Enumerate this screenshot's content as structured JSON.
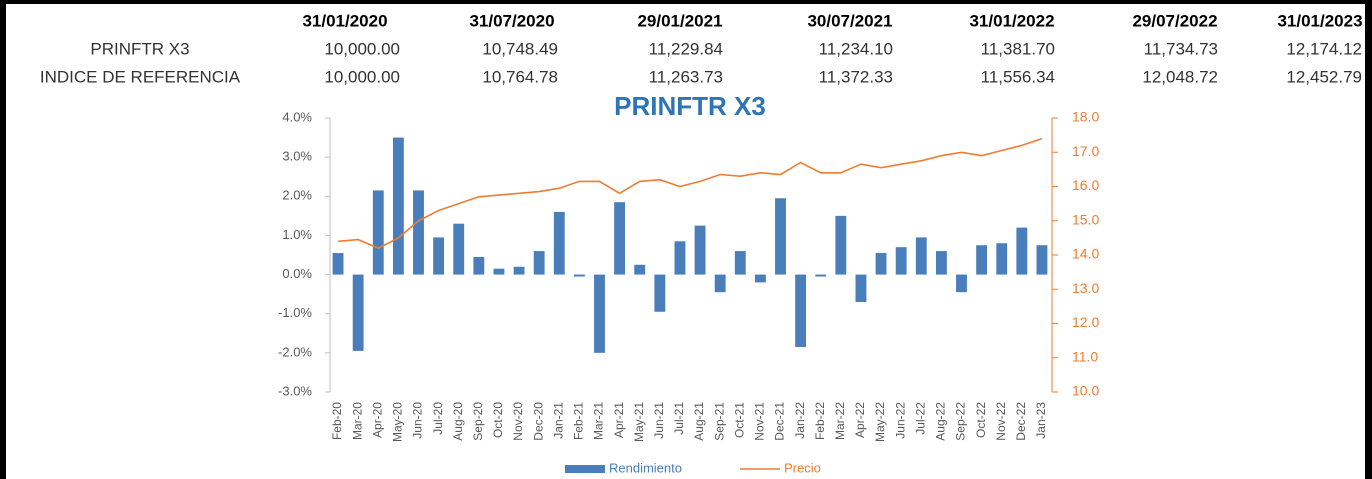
{
  "table": {
    "header": [
      "31/01/2020",
      "31/07/2020",
      "29/01/2021",
      "30/07/2021",
      "31/01/2022",
      "29/07/2022",
      "31/01/2023"
    ],
    "rows": [
      [
        "PRINFTR X3",
        "10,000.00",
        "10,748.49",
        "11,229.84",
        "11,234.10",
        "11,381.70",
        "11,734.73",
        "12,174.12"
      ],
      [
        "INDICE DE REFERENCIA",
        "10,000.00",
        "10,764.78",
        "11,263.73",
        "11,372.33",
        "11,556.34",
        "12,048.72",
        "12,452.79"
      ]
    ]
  },
  "chart_data": {
    "type": "bar",
    "title": "PRINFTR X3",
    "categories": [
      "Feb-20",
      "Mar-20",
      "Apr-20",
      "May-20",
      "Jun-20",
      "Jul-20",
      "Aug-20",
      "Sep-20",
      "Oct-20",
      "Nov-20",
      "Dec-20",
      "Jan-21",
      "Feb-21",
      "Mar-21",
      "Apr-21",
      "May-21",
      "Jun-21",
      "Jul-21",
      "Aug-21",
      "Sep-21",
      "Oct-21",
      "Nov-21",
      "Dec-21",
      "Jan-22",
      "Feb-22",
      "Mar-22",
      "Apr-22",
      "May-22",
      "Jun-22",
      "Jul-22",
      "Aug-22",
      "Sep-22",
      "Oct-22",
      "Nov-22",
      "Dec-22",
      "Jan-23"
    ],
    "series": [
      {
        "name": "Rendimiento",
        "type": "bar",
        "color": "#4a7ebb",
        "values": [
          0.55,
          -1.95,
          2.15,
          3.5,
          2.15,
          0.95,
          1.3,
          0.45,
          0.15,
          0.2,
          0.6,
          1.6,
          -0.05,
          -2.0,
          1.85,
          0.25,
          -0.95,
          0.85,
          1.25,
          -0.45,
          0.6,
          -0.2,
          1.95,
          -1.85,
          -0.05,
          1.5,
          -0.7,
          0.55,
          0.7,
          0.95,
          0.6,
          -0.45,
          0.75,
          0.8,
          1.2,
          0.75
        ]
      },
      {
        "name": "Precio",
        "type": "line",
        "color": "#ed7d31",
        "axis": "y2",
        "values": [
          14.4,
          14.45,
          14.2,
          14.5,
          15.0,
          15.3,
          15.5,
          15.7,
          15.75,
          15.8,
          15.85,
          15.95,
          16.15,
          16.15,
          15.8,
          16.15,
          16.2,
          16.0,
          16.15,
          16.35,
          16.3,
          16.4,
          16.35,
          16.7,
          16.4,
          16.4,
          16.65,
          16.55,
          16.65,
          16.75,
          16.9,
          17.0,
          16.9,
          17.05,
          17.2,
          17.4
        ]
      }
    ],
    "ylim": [
      -3,
      4
    ],
    "yticks": [
      {
        "value": -3,
        "label": "-3.0%"
      },
      {
        "value": -2,
        "label": "-2.0%"
      },
      {
        "value": -1,
        "label": "-1.0%"
      },
      {
        "value": 0,
        "label": "0.0%"
      },
      {
        "value": 1,
        "label": "1.0%"
      },
      {
        "value": 2,
        "label": "2.0%"
      },
      {
        "value": 3,
        "label": "3.0%"
      },
      {
        "value": 4,
        "label": "4.0%"
      }
    ],
    "y2lim": [
      10,
      18
    ],
    "y2ticks": [
      {
        "value": 10,
        "label": "10.0"
      },
      {
        "value": 11,
        "label": "11.0"
      },
      {
        "value": 12,
        "label": "12.0"
      },
      {
        "value": 13,
        "label": "13.0"
      },
      {
        "value": 14,
        "label": "14.0"
      },
      {
        "value": 15,
        "label": "15.0"
      },
      {
        "value": 16,
        "label": "16.0"
      },
      {
        "value": 17,
        "label": "17.0"
      },
      {
        "value": 18,
        "label": "18.0"
      }
    ],
    "legend": "bottom"
  }
}
